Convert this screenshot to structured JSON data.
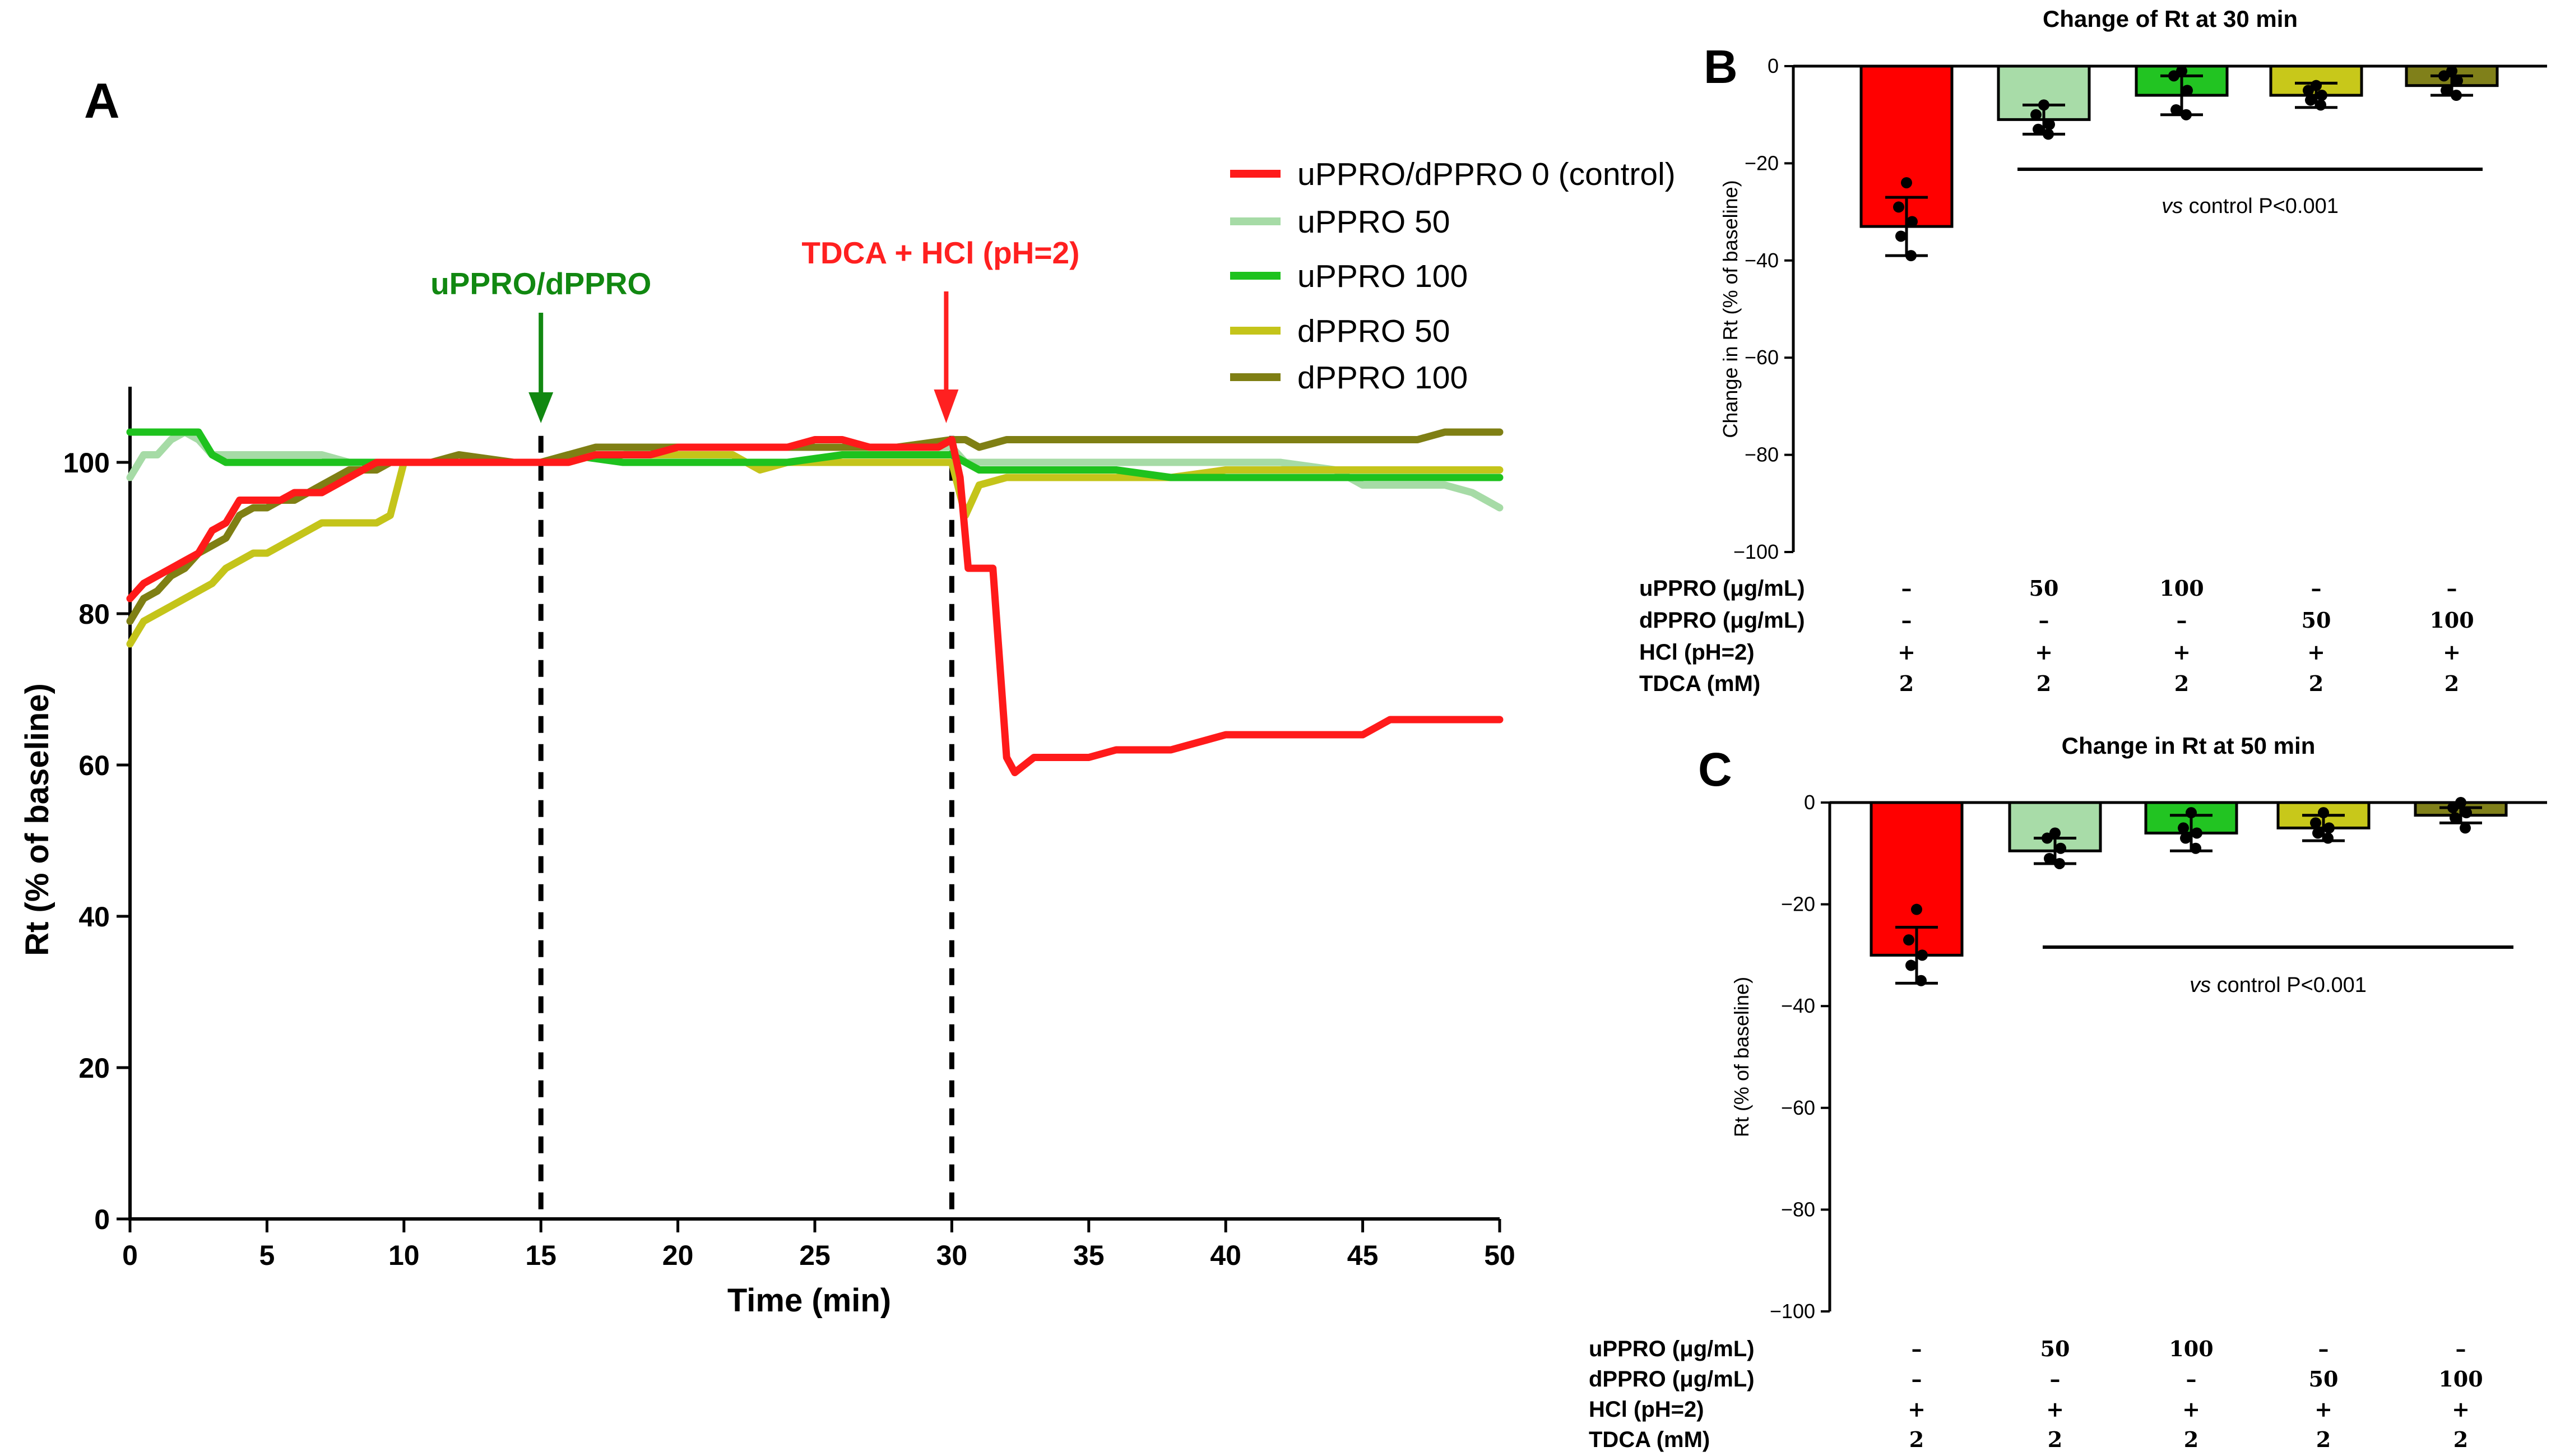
{
  "chart_data": [
    {
      "panel": "A",
      "type": "line",
      "xlabel": "Time (min)",
      "ylabel": "Rt (% of baseline)",
      "xlim": [
        0,
        50
      ],
      "ylim": [
        0,
        110
      ],
      "xticks": [
        0,
        5,
        10,
        15,
        20,
        25,
        30,
        35,
        40,
        45,
        50
      ],
      "yticks": [
        0,
        20,
        40,
        60,
        80,
        100
      ],
      "annotations": [
        {
          "text": "uPPRO/dPPRO",
          "x": 15,
          "color": "#118811"
        },
        {
          "text": "TDCA + HCl (pH=2)",
          "x": 30,
          "color": "#ff2020"
        }
      ],
      "series": [
        {
          "name": "uPPRO/dPPRO 0 (control)",
          "color": "#ff1a1a",
          "x": [
            0,
            0.5,
            1,
            1.5,
            2,
            2.5,
            3,
            3.5,
            4,
            4.5,
            5,
            5.5,
            6,
            6.5,
            7,
            7.5,
            8,
            8.5,
            9,
            9.5,
            10,
            11,
            12,
            13,
            14,
            15,
            16,
            17,
            18,
            19,
            20,
            21,
            22,
            23,
            24,
            25,
            26,
            27,
            28,
            29,
            29.5,
            30,
            30.3,
            30.6,
            31,
            31.5,
            32,
            32.3,
            33,
            34,
            35,
            36,
            37,
            38,
            39,
            40,
            42,
            44,
            45,
            45.5,
            46,
            48,
            50
          ],
          "y": [
            82,
            84,
            85,
            86,
            87,
            88,
            91,
            92,
            95,
            95,
            95,
            95,
            96,
            96,
            96,
            97,
            98,
            99,
            100,
            100,
            100,
            100,
            100,
            100,
            100,
            100,
            100,
            101,
            101,
            101,
            102,
            102,
            102,
            102,
            102,
            103,
            103,
            102,
            102,
            102,
            102,
            103,
            98,
            86,
            86,
            86,
            61,
            59,
            61,
            61,
            61,
            62,
            62,
            62,
            63,
            64,
            64,
            64,
            64,
            65,
            66,
            66,
            66
          ]
        },
        {
          "name": "uPPRO 50",
          "color": "#a6dba6",
          "x": [
            0,
            0.5,
            1,
            1.5,
            2,
            2.5,
            3,
            3.5,
            4,
            5,
            6,
            7,
            8,
            9,
            10,
            12,
            14,
            15,
            16,
            17,
            18,
            20,
            22,
            24,
            26,
            28,
            30,
            30.5,
            31,
            32,
            34,
            36,
            38,
            40,
            42,
            44,
            45,
            46,
            48,
            49,
            49.5,
            50
          ],
          "y": [
            98,
            101,
            101,
            103,
            104,
            103,
            101,
            101,
            101,
            101,
            101,
            101,
            100,
            100,
            100,
            100,
            100,
            100,
            101,
            101,
            101,
            102,
            102,
            102,
            102,
            102,
            102,
            100,
            100,
            100,
            100,
            100,
            100,
            100,
            100,
            99,
            97,
            97,
            97,
            96,
            95,
            94
          ]
        },
        {
          "name": "uPPRO 100",
          "color": "#1ec21e",
          "x": [
            0,
            1,
            2,
            2.5,
            3,
            3.5,
            4,
            5,
            8,
            10,
            12,
            14,
            15,
            16,
            18,
            20,
            22,
            24,
            26,
            28,
            30,
            30.5,
            31,
            32,
            34,
            36,
            38,
            40,
            42,
            44,
            46,
            48,
            50
          ],
          "y": [
            104,
            104,
            104,
            104,
            101,
            100,
            100,
            100,
            100,
            100,
            100,
            100,
            100,
            101,
            100,
            100,
            100,
            100,
            101,
            101,
            101,
            100,
            99,
            99,
            99,
            99,
            98,
            98,
            98,
            98,
            98,
            98,
            98
          ]
        },
        {
          "name": "dPPRO 50",
          "color": "#c4c41a",
          "x": [
            0,
            0.5,
            1,
            1.5,
            2,
            2.5,
            3,
            3.5,
            4,
            4.5,
            5,
            5.5,
            6,
            6.5,
            7,
            8,
            9,
            9.5,
            10,
            11,
            12,
            14,
            15,
            16,
            17,
            18,
            20,
            22,
            23,
            24,
            26,
            28,
            30,
            30.5,
            31,
            32,
            34,
            36,
            38,
            40,
            42,
            44,
            46,
            48,
            50
          ],
          "y": [
            76,
            79,
            80,
            81,
            82,
            83,
            84,
            86,
            87,
            88,
            88,
            89,
            90,
            91,
            92,
            92,
            92,
            93,
            100,
            100,
            100,
            100,
            100,
            100,
            101,
            101,
            101,
            101,
            99,
            100,
            100,
            100,
            100,
            93,
            97,
            98,
            98,
            98,
            98,
            99,
            99,
            99,
            99,
            99,
            99
          ]
        },
        {
          "name": "dPPRO 100",
          "color": "#7f7f14",
          "x": [
            0,
            0.5,
            1,
            1.5,
            2,
            2.5,
            3,
            3.5,
            4,
            4.5,
            5,
            5.5,
            6,
            6.5,
            7,
            7.5,
            8,
            8.5,
            9,
            9.5,
            10,
            11,
            12,
            14,
            15,
            16,
            17,
            18,
            20,
            22,
            24,
            26,
            28,
            30,
            30.5,
            31,
            32,
            34,
            36,
            38,
            40,
            42,
            44,
            46,
            47,
            48,
            50
          ],
          "y": [
            79,
            82,
            83,
            85,
            86,
            88,
            89,
            90,
            93,
            94,
            94,
            95,
            95,
            96,
            97,
            98,
            99,
            99,
            99,
            100,
            100,
            100,
            101,
            100,
            100,
            101,
            102,
            102,
            102,
            102,
            102,
            102,
            102,
            103,
            103,
            102,
            103,
            103,
            103,
            103,
            103,
            103,
            103,
            103,
            103,
            104,
            104
          ]
        }
      ]
    },
    {
      "panel": "B",
      "type": "bar",
      "title": "Change of Rt at 30 min",
      "ylabel": "Change in Rt (% of baseline)",
      "ylim": [
        -100,
        0
      ],
      "yticks": [
        0,
        -20,
        -40,
        -60,
        -80,
        -100
      ],
      "values": [
        -33,
        -11,
        -6,
        -6,
        -4
      ],
      "errors": [
        6,
        3,
        4,
        2.5,
        2
      ],
      "colors": [
        "#ff0000",
        "#a8dca8",
        "#22c422",
        "#c8c81a",
        "#80801a"
      ],
      "points": [
        [
          -24,
          -29,
          -32,
          -35,
          -39
        ],
        [
          -8,
          -10,
          -12,
          -13,
          -14
        ],
        [
          -1,
          -2,
          -5,
          -9,
          -10
        ],
        [
          -4,
          -5,
          -6,
          -7,
          -8
        ],
        [
          -1,
          -2,
          -3,
          -5,
          -6
        ]
      ],
      "significance": "vs control P<0.001",
      "sig_prefix": "vs",
      "sig_suffix": "control P<0.001",
      "row_labels": [
        "uPPRO (μg/mL)",
        "dPPRO (μg/mL)",
        "HCl (pH=2)",
        "TDCA (mM)"
      ],
      "table": [
        [
          "–",
          "50",
          "100",
          "–",
          "–"
        ],
        [
          "–",
          "–",
          "–",
          "50",
          "100"
        ],
        [
          "+",
          "+",
          "+",
          "+",
          "+"
        ],
        [
          "2",
          "2",
          "2",
          "2",
          "2"
        ]
      ]
    },
    {
      "panel": "C",
      "type": "bar",
      "title": "Change in Rt at 50 min",
      "ylabel": "Rt (% of baseline)",
      "ylim": [
        -100,
        0
      ],
      "yticks": [
        0,
        -20,
        -40,
        -60,
        -80,
        -100
      ],
      "values": [
        -30,
        -9.5,
        -6,
        -5,
        -2.5
      ],
      "errors": [
        5.5,
        2.5,
        3.5,
        2.5,
        1.5
      ],
      "colors": [
        "#ff0000",
        "#a8dca8",
        "#22c422",
        "#c8c81a",
        "#80801a"
      ],
      "points": [
        [
          -21,
          -27,
          -30,
          -32,
          -35
        ],
        [
          -6,
          -7,
          -9,
          -11,
          -12
        ],
        [
          -2,
          -5,
          -6,
          -7,
          -9
        ],
        [
          -2,
          -4,
          -5,
          -6,
          -7
        ],
        [
          0,
          -1,
          -2,
          -3,
          -5
        ]
      ],
      "significance": "vs control P<0.001",
      "sig_prefix": "vs",
      "sig_suffix": "control P<0.001",
      "row_labels": [
        "uPPRO (μg/mL)",
        "dPPRO (μg/mL)",
        "HCl (pH=2)",
        "TDCA (mM)"
      ],
      "table": [
        [
          "–",
          "50",
          "100",
          "–",
          "–"
        ],
        [
          "–",
          "–",
          "–",
          "50",
          "100"
        ],
        [
          "+",
          "+",
          "+",
          "+",
          "+"
        ],
        [
          "2",
          "2",
          "2",
          "2",
          "2"
        ]
      ]
    }
  ],
  "panel_letters": [
    "A",
    "B",
    "C"
  ]
}
